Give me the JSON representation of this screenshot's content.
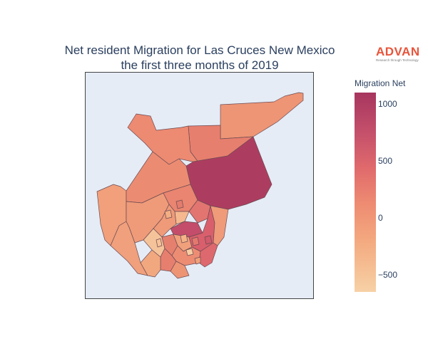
{
  "title": {
    "line1": "Net resident Migration for Las Cruces New Mexico",
    "line2": "the first three months of 2019"
  },
  "logo": {
    "word": "ADVAN",
    "tagline": "Research through Technology",
    "color": "#e8543a"
  },
  "legend": {
    "title": "Migration Net",
    "min": -650,
    "max": 1100,
    "ticks": [
      {
        "value": 1000,
        "label": "1000"
      },
      {
        "value": 500,
        "label": "500"
      },
      {
        "value": 0,
        "label": "0"
      },
      {
        "value": -500,
        "label": "−500"
      }
    ],
    "colorscale": [
      "#f7d1a6",
      "#f4aa80",
      "#ee8c72",
      "#e06a6c",
      "#c4506b",
      "#a7365f"
    ]
  },
  "map": {
    "background": "#e5ecf6",
    "border_color": "#444444",
    "region_border": "#6b4a52"
  }
}
